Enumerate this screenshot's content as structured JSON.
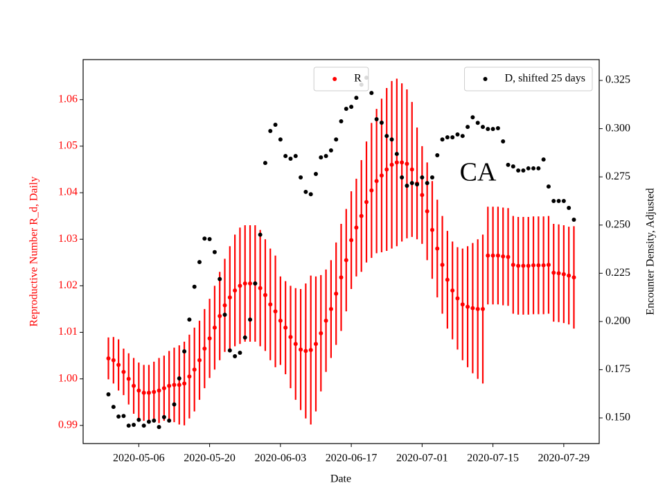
{
  "chart_data": {
    "type": "errorbar_scatter_dual",
    "xlabel": "Date",
    "ylabel": "Reproductive Number R_d, Daily",
    "y2label": "Encounter Density, Adjusted",
    "annotation": "CA",
    "x": [
      "2020-04-30",
      "2020-05-01",
      "2020-05-02",
      "2020-05-03",
      "2020-05-04",
      "2020-05-05",
      "2020-05-06",
      "2020-05-07",
      "2020-05-08",
      "2020-05-09",
      "2020-05-10",
      "2020-05-11",
      "2020-05-12",
      "2020-05-13",
      "2020-05-14",
      "2020-05-15",
      "2020-05-16",
      "2020-05-17",
      "2020-05-18",
      "2020-05-19",
      "2020-05-20",
      "2020-05-21",
      "2020-05-22",
      "2020-05-23",
      "2020-05-24",
      "2020-05-25",
      "2020-05-26",
      "2020-05-27",
      "2020-05-28",
      "2020-05-29",
      "2020-05-30",
      "2020-05-31",
      "2020-06-01",
      "2020-06-02",
      "2020-06-03",
      "2020-06-04",
      "2020-06-05",
      "2020-06-06",
      "2020-06-07",
      "2020-06-08",
      "2020-06-09",
      "2020-06-10",
      "2020-06-11",
      "2020-06-12",
      "2020-06-13",
      "2020-06-14",
      "2020-06-15",
      "2020-06-16",
      "2020-06-17",
      "2020-06-18",
      "2020-06-19",
      "2020-06-20",
      "2020-06-21",
      "2020-06-22",
      "2020-06-23",
      "2020-06-24",
      "2020-06-25",
      "2020-06-26",
      "2020-06-27",
      "2020-06-28",
      "2020-06-29",
      "2020-06-30",
      "2020-07-01",
      "2020-07-02",
      "2020-07-03",
      "2020-07-04",
      "2020-07-05",
      "2020-07-06",
      "2020-07-07",
      "2020-07-08",
      "2020-07-09",
      "2020-07-10",
      "2020-07-11",
      "2020-07-12",
      "2020-07-13",
      "2020-07-14",
      "2020-07-15",
      "2020-07-16",
      "2020-07-17",
      "2020-07-18",
      "2020-07-19",
      "2020-07-20",
      "2020-07-21",
      "2020-07-22",
      "2020-07-23",
      "2020-07-24",
      "2020-07-25",
      "2020-07-26",
      "2020-07-27",
      "2020-07-28",
      "2020-07-29",
      "2020-07-30",
      "2020-07-31"
    ],
    "xlim": [
      "2020-04-25",
      "2020-08-05"
    ],
    "xticks": [
      "2020-05-06",
      "2020-05-20",
      "2020-06-03",
      "2020-06-17",
      "2020-07-01",
      "2020-07-15",
      "2020-07-29"
    ],
    "ylim": [
      0.9861,
      1.0686
    ],
    "yticks": [
      0.99,
      {
        "value": 1,
        "label": "1.00"
      },
      1.01,
      1.02,
      1.03,
      1.04,
      1.05,
      1.06
    ],
    "y2lim": [
      0.1367,
      0.3358
    ],
    "y2ticks": [
      {
        "value": 0.15,
        "label": "0.150"
      },
      0.175,
      {
        "value": 0.2,
        "label": "0.200"
      },
      0.225,
      {
        "value": 0.25,
        "label": "0.250"
      },
      0.275,
      {
        "value": 0.3,
        "label": "0.300"
      },
      0.325
    ],
    "series": [
      {
        "name": "R",
        "color": "red",
        "axis": "y",
        "legend": "upper center",
        "values": [
          1.0044,
          1.004,
          1.003,
          1.0015,
          1.0,
          0.9985,
          0.9975,
          0.997,
          0.997,
          0.9972,
          0.9975,
          0.998,
          0.9985,
          0.9987,
          0.9987,
          0.999,
          1.0005,
          1.002,
          1.004,
          1.0065,
          1.0087,
          1.011,
          1.0135,
          1.0158,
          1.0175,
          1.019,
          1.02,
          1.0205,
          1.0205,
          1.0205,
          1.0195,
          1.018,
          1.016,
          1.0145,
          1.0125,
          1.011,
          1.009,
          1.0075,
          1.0063,
          1.006,
          1.0062,
          1.0075,
          1.0098,
          1.0125,
          1.015,
          1.0183,
          1.0218,
          1.0255,
          1.0298,
          1.0325,
          1.035,
          1.038,
          1.0405,
          1.0425,
          1.0437,
          1.045,
          1.046,
          1.0465,
          1.0465,
          1.0462,
          1.045,
          1.042,
          1.0395,
          1.036,
          1.032,
          1.028,
          1.0245,
          1.0213,
          1.019,
          1.0173,
          1.016,
          1.0155,
          1.0152,
          1.015,
          1.015,
          1.0265,
          1.0265,
          1.0265,
          1.0263,
          1.0262,
          1.0245,
          1.0243,
          1.0243,
          1.0243,
          1.0244,
          1.0244,
          1.0244,
          1.0245,
          1.0228,
          1.0227,
          1.0225,
          1.0222,
          1.0218
        ],
        "errors": [
          0.0045,
          0.005,
          0.0055,
          0.005,
          0.0055,
          0.006,
          0.006,
          0.006,
          0.006,
          0.0065,
          0.007,
          0.007,
          0.0075,
          0.008,
          0.0085,
          0.009,
          0.009,
          0.009,
          0.0085,
          0.0085,
          0.0085,
          0.009,
          0.0095,
          0.01,
          0.011,
          0.012,
          0.0125,
          0.0125,
          0.0125,
          0.0125,
          0.0125,
          0.012,
          0.012,
          0.012,
          0.0095,
          0.01,
          0.011,
          0.012,
          0.013,
          0.0145,
          0.016,
          0.0145,
          0.0125,
          0.011,
          0.0105,
          0.011,
          0.0115,
          0.011,
          0.0105,
          0.0105,
          0.012,
          0.013,
          0.0145,
          0.0155,
          0.0165,
          0.0175,
          0.018,
          0.018,
          0.017,
          0.016,
          0.0145,
          0.012,
          0.0105,
          0.0105,
          0.0105,
          0.0105,
          0.0105,
          0.0105,
          0.0105,
          0.011,
          0.012,
          0.013,
          0.014,
          0.015,
          0.016,
          0.0105,
          0.0105,
          0.0105,
          0.0105,
          0.0105,
          0.0105,
          0.0105,
          0.0105,
          0.0105,
          0.0105,
          0.0105,
          0.0105,
          0.0105,
          0.0105,
          0.0105,
          0.0105,
          0.0105,
          0.011
        ]
      },
      {
        "name": "D, shifted 25 days",
        "color": "black",
        "axis": "y2",
        "legend": "upper right",
        "values": [
          0.1622,
          0.1557,
          0.1507,
          0.151,
          0.146,
          0.1464,
          0.149,
          0.146,
          0.148,
          0.1486,
          0.1453,
          0.1504,
          0.1486,
          0.157,
          0.1705,
          0.1845,
          0.201,
          0.218,
          0.2308,
          0.243,
          0.2427,
          0.236,
          0.222,
          0.2035,
          0.185,
          0.182,
          0.1838,
          0.1917,
          0.201,
          0.2197,
          0.245,
          0.2822,
          0.2988,
          0.302,
          0.2944,
          0.2858,
          0.2844,
          0.2858,
          0.2747,
          0.2672,
          0.266,
          0.2765,
          0.2851,
          0.2858,
          0.2887,
          0.2944,
          0.3038,
          0.3103,
          0.3113,
          0.316,
          0.3228,
          0.3264,
          0.3185,
          0.3049,
          0.3031,
          0.2962,
          0.2944,
          0.2869,
          0.2747,
          0.2704,
          0.2718,
          0.2711,
          0.2747,
          0.2718,
          0.2747,
          0.2862,
          0.2944,
          0.2955,
          0.2955,
          0.297,
          0.2962,
          0.3009,
          0.3059,
          0.303,
          0.3009,
          0.2998,
          0.2998,
          0.3002,
          0.2934,
          0.2812,
          0.2804,
          0.2783,
          0.2783,
          0.2794,
          0.2794,
          0.2794,
          0.284,
          0.27,
          0.2625,
          0.2625,
          0.2625,
          0.2589,
          0.2528
        ]
      }
    ]
  }
}
